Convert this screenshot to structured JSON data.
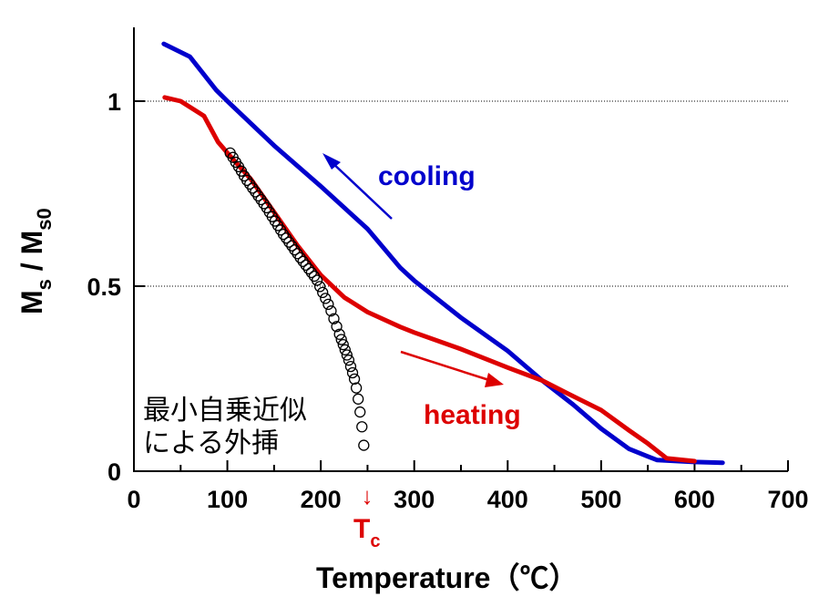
{
  "chart_data": {
    "type": "line",
    "xlabel": "Temperature（℃）",
    "ylabel": {
      "main": "M",
      "sub1": "s",
      "sep": " / M",
      "sub2": "s0"
    },
    "xlim": [
      0,
      700
    ],
    "ylim": [
      0,
      1.2
    ],
    "x_ticks": [
      "0",
      "100",
      "200",
      "300",
      "400",
      "500",
      "600",
      "700"
    ],
    "y_ticks": [
      {
        "v": 0,
        "label": "0"
      },
      {
        "v": 0.5,
        "label": "0.5"
      },
      {
        "v": 1,
        "label": "1"
      }
    ],
    "grid": "horizontal dotted at 0.5 and 1",
    "colors": {
      "cooling": "#0000cc",
      "heating": "#dd0000",
      "fit": "#000000",
      "tc": "#dd0000"
    },
    "series": [
      {
        "name": "cooling",
        "style": "line",
        "x": [
          32,
          60,
          88,
          100,
          150,
          200,
          250,
          285,
          300,
          350,
          400,
          437,
          470,
          500,
          530,
          550,
          560,
          600,
          630
        ],
        "y": [
          1.155,
          1.12,
          1.03,
          1.0,
          0.88,
          0.77,
          0.655,
          0.55,
          0.515,
          0.415,
          0.325,
          0.245,
          0.18,
          0.115,
          0.06,
          0.04,
          0.03,
          0.025,
          0.023
        ]
      },
      {
        "name": "heating",
        "style": "line",
        "x": [
          33,
          50,
          75,
          90,
          100,
          125,
          150,
          175,
          200,
          225,
          250,
          285,
          300,
          350,
          400,
          437,
          461,
          500,
          530,
          550,
          570,
          600
        ],
        "y": [
          1.01,
          1.0,
          0.96,
          0.89,
          0.86,
          0.79,
          0.7,
          0.61,
          0.53,
          0.47,
          0.43,
          0.39,
          0.375,
          0.33,
          0.28,
          0.245,
          0.214,
          0.165,
          0.11,
          0.075,
          0.035,
          0.027
        ]
      },
      {
        "name": "最小自乗近似による外挿",
        "style": "open-circles",
        "x": [
          103,
          106,
          109,
          112,
          115,
          118,
          121,
          124,
          127,
          130,
          133,
          136,
          139,
          142,
          145,
          148,
          151,
          154,
          157,
          160,
          163,
          166,
          169,
          172,
          175,
          178,
          181,
          184,
          187,
          190,
          193,
          196,
          199,
          202,
          205,
          208,
          211,
          214,
          217,
          220,
          222,
          224,
          226,
          228,
          230,
          232,
          234,
          236,
          238,
          240,
          242,
          244,
          246
        ],
        "y": [
          0.86,
          0.848,
          0.835,
          0.823,
          0.811,
          0.798,
          0.786,
          0.776,
          0.765,
          0.755,
          0.744,
          0.734,
          0.723,
          0.712,
          0.7,
          0.688,
          0.676,
          0.664,
          0.652,
          0.64,
          0.63,
          0.619,
          0.609,
          0.598,
          0.588,
          0.577,
          0.567,
          0.557,
          0.547,
          0.537,
          0.527,
          0.516,
          0.499,
          0.483,
          0.467,
          0.451,
          0.433,
          0.412,
          0.391,
          0.37,
          0.356,
          0.342,
          0.328,
          0.314,
          0.3,
          0.283,
          0.266,
          0.249,
          0.225,
          0.195,
          0.16,
          0.12,
          0.07
        ]
      }
    ],
    "annotations": {
      "cooling_label": "cooling",
      "heating_label": "heating",
      "fit_label_line1": "最小自乗近似",
      "fit_label_line2": "による外挿",
      "tc_main": "T",
      "tc_sub": "c",
      "tc_arrow": "↓",
      "tc_value": 245
    }
  }
}
